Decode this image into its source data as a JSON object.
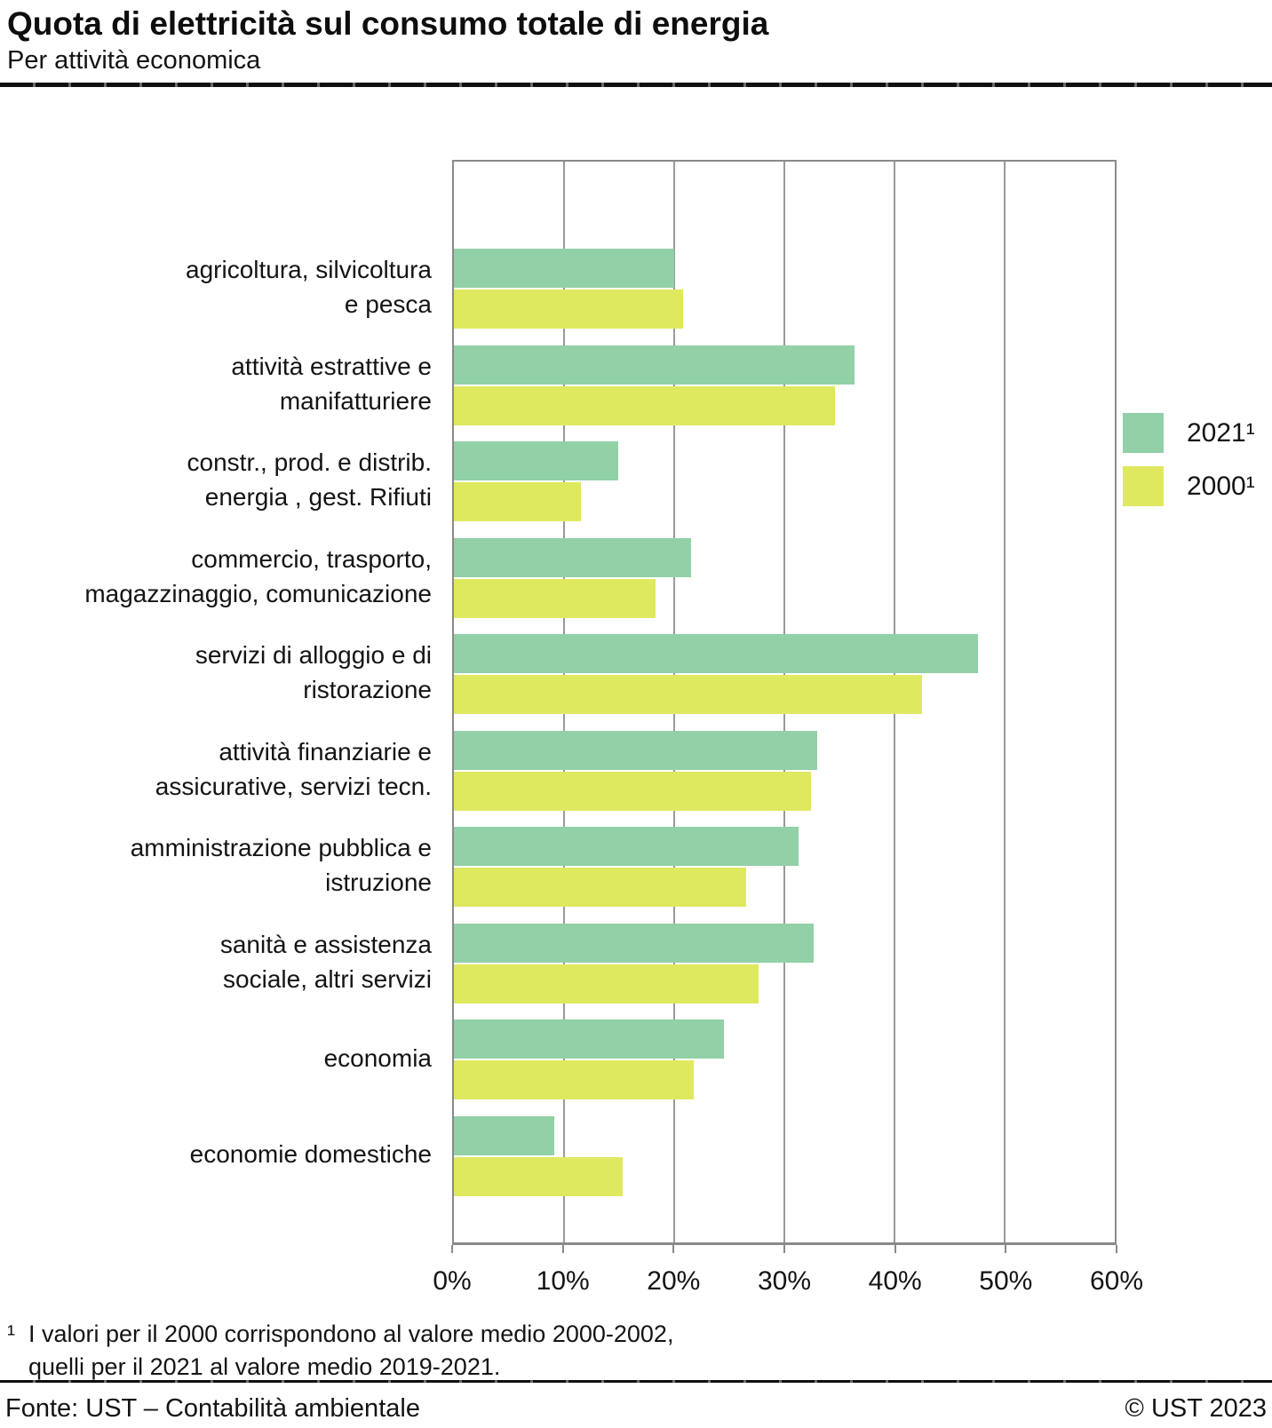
{
  "header": {
    "title": "Quota di elettricità sul consumo totale di energia",
    "subtitle": "Per attività economica"
  },
  "legend": [
    {
      "label": "2021¹",
      "color": "#92d0a7"
    },
    {
      "label": "2000¹",
      "color": "#dfe95f"
    }
  ],
  "chart_data": {
    "type": "bar",
    "orientation": "horizontal",
    "title": "Quota di elettricità sul consumo totale di energia",
    "subtitle": "Per attività economica",
    "categories": [
      "agricoltura, silvicoltura\ne pesca",
      "attività estrattive e\nmanifatturiere",
      "constr., prod. e distrib.\nenergia , gest. Rifiuti",
      "commercio, trasporto,\nmagazzinaggio, comunicazione",
      "servizi di alloggio e di\nristorazione",
      "attività finanziarie e\nassicurative, servizi tecn.",
      "amministrazione pubblica e\nistruzione",
      "economia",
      "economie domestiche"
    ],
    "categories_note": "category 'sanità e assistenza\nsociale, altri servizi' sits between 'amministrazione pubblica e\nistruzione' and 'economia'",
    "categories_full": [
      "agricoltura, silvicoltura\ne pesca",
      "attività estrattive e\nmanifatturiere",
      "constr., prod. e distrib.\nenergia , gest. Rifiuti",
      "commercio, trasporto,\nmagazzinaggio, comunicazione",
      "servizi di alloggio e di\nristorazione",
      "attività finanziarie e\nassicurative, servizi tecn.",
      "amministrazione pubblica e\nistruzione",
      "sanità e assistenza\nsociale, altri servizi",
      "economia",
      "economie domestiche"
    ],
    "series": [
      {
        "name": "2021¹",
        "color": "#92d0a7",
        "values": [
          20.0,
          36.4,
          14.9,
          21.5,
          47.6,
          33.0,
          31.3,
          32.7,
          24.5,
          9.1
        ]
      },
      {
        "name": "2000¹",
        "color": "#dfe95f",
        "values": [
          20.8,
          34.6,
          11.5,
          18.3,
          42.5,
          32.4,
          26.5,
          27.7,
          21.8,
          15.3
        ]
      }
    ],
    "xlabel": "",
    "ylabel": "",
    "xlim": [
      0,
      60
    ],
    "xticks": [
      "0%",
      "10%",
      "20%",
      "30%",
      "40%",
      "50%",
      "60%"
    ],
    "grid": true,
    "legend_position": "right",
    "unit": "percent"
  },
  "footnote": {
    "marker": "¹",
    "lines": [
      "I valori per il 2000 corrispondono al valore medio 2000-2002,",
      "quelli per il 2021 al valore medio 2019-2021."
    ]
  },
  "footer": {
    "source": "Fonte: UST – Contabilità ambientale",
    "copyright": "© UST 2023"
  }
}
